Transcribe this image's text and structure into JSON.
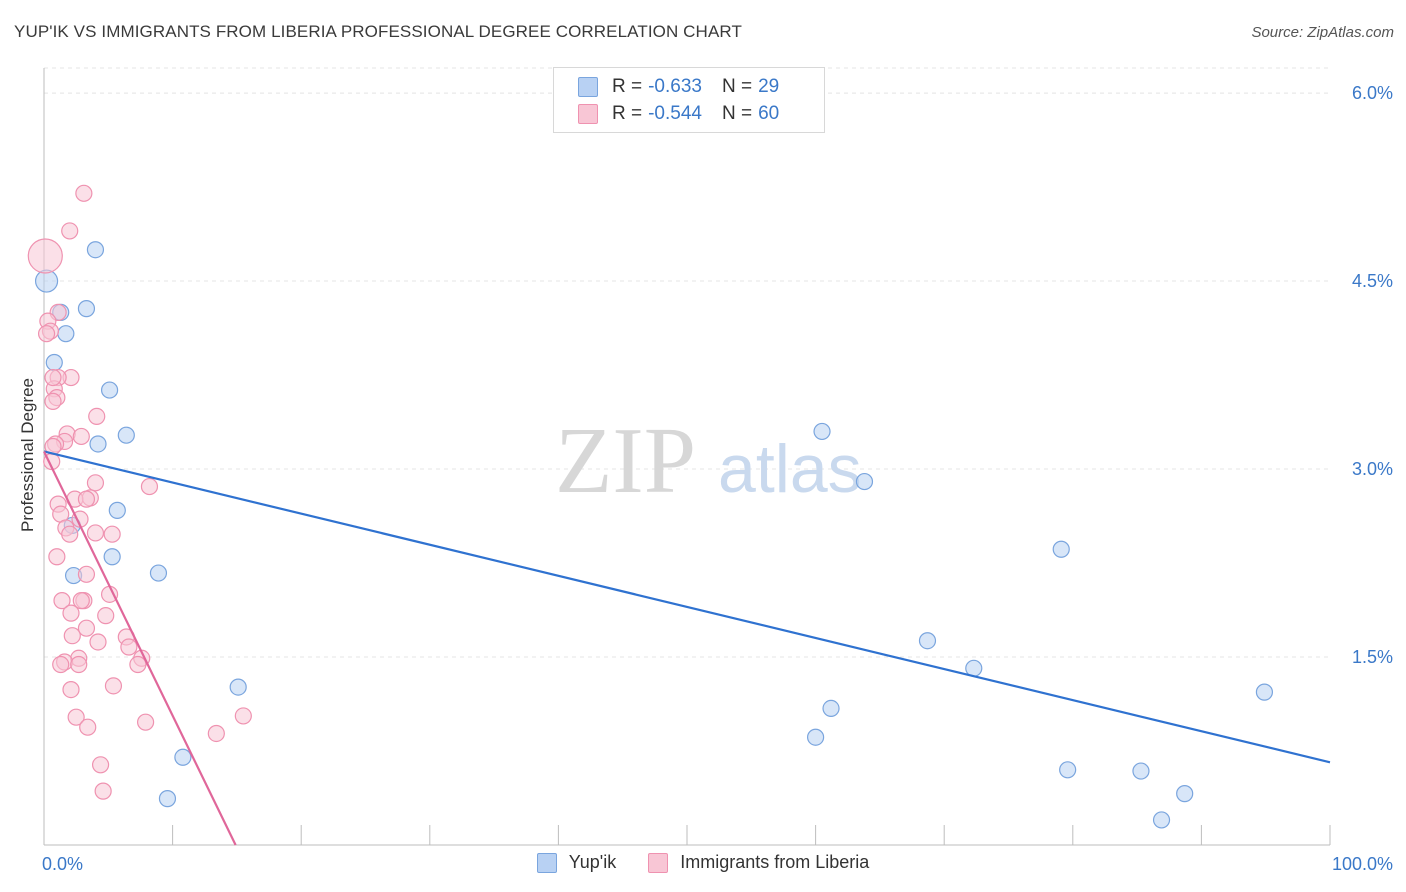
{
  "header": {
    "title": "YUP'IK VS IMMIGRANTS FROM LIBERIA PROFESSIONAL DEGREE CORRELATION CHART",
    "source": "Source: ZipAtlas.com"
  },
  "watermark": {
    "zip": "ZIP",
    "atlas": "atlas"
  },
  "legend_top": [
    {
      "r_label": "R =",
      "r_value": "-0.633",
      "n_label": "N =",
      "n_value": "29"
    },
    {
      "r_label": "R =",
      "r_value": "-0.544",
      "n_label": "N =",
      "n_value": "60"
    }
  ],
  "colors": {
    "blue_fill": "#b8d1f3",
    "blue_stroke": "#7aa5de",
    "blue_line": "#2f72d0",
    "pink_fill": "#f8c6d5",
    "pink_stroke": "#ef92b0",
    "pink_line": "#e0679a",
    "axis_text": "#3a78c8",
    "grid": "#e4e4e4"
  },
  "chart_data": {
    "type": "scatter",
    "title": "YUP'IK VS IMMIGRANTS FROM LIBERIA PROFESSIONAL DEGREE CORRELATION CHART",
    "xlabel": "",
    "ylabel": "Professional Degree",
    "xlim": [
      0,
      100
    ],
    "ylim": [
      0,
      6.2
    ],
    "x_ticks": [
      0,
      10,
      20,
      30,
      40,
      50,
      60,
      70,
      80,
      90,
      100
    ],
    "x_tick_labels": {
      "0": "0.0%",
      "100": "100.0%"
    },
    "y_ticks": [
      1.5,
      3.0,
      4.5,
      6.0
    ],
    "y_tick_labels": [
      "1.5%",
      "3.0%",
      "4.5%",
      "6.0%"
    ],
    "series": [
      {
        "name": "Yup'ik",
        "color": "#b8d1f3",
        "points": [
          [
            0.2,
            4.5
          ],
          [
            4.0,
            4.75
          ],
          [
            1.3,
            4.25
          ],
          [
            3.3,
            4.28
          ],
          [
            1.7,
            4.08
          ],
          [
            0.8,
            3.85
          ],
          [
            5.1,
            3.63
          ],
          [
            6.4,
            3.27
          ],
          [
            4.2,
            3.2
          ],
          [
            5.7,
            2.67
          ],
          [
            2.2,
            2.55
          ],
          [
            5.3,
            2.3
          ],
          [
            2.3,
            2.15
          ],
          [
            8.9,
            2.17
          ],
          [
            60.5,
            3.3
          ],
          [
            63.8,
            2.9
          ],
          [
            79.1,
            2.36
          ],
          [
            68.7,
            1.63
          ],
          [
            72.3,
            1.41
          ],
          [
            15.1,
            1.26
          ],
          [
            94.9,
            1.22
          ],
          [
            61.2,
            1.09
          ],
          [
            60.0,
            0.86
          ],
          [
            10.8,
            0.7
          ],
          [
            79.6,
            0.6
          ],
          [
            85.3,
            0.59
          ],
          [
            88.7,
            0.41
          ],
          [
            9.6,
            0.37
          ],
          [
            86.9,
            0.2
          ]
        ],
        "trend": {
          "x": [
            0,
            100
          ],
          "y": [
            3.14,
            0.66
          ]
        }
      },
      {
        "name": "Immigrants from Liberia",
        "color": "#f8c6d5",
        "points": [
          [
            0.1,
            4.7
          ],
          [
            3.1,
            5.2
          ],
          [
            2.0,
            4.9
          ],
          [
            1.1,
            4.25
          ],
          [
            0.3,
            4.18
          ],
          [
            0.5,
            4.1
          ],
          [
            0.2,
            4.08
          ],
          [
            2.1,
            3.73
          ],
          [
            1.1,
            3.73
          ],
          [
            0.8,
            3.64
          ],
          [
            1.0,
            3.57
          ],
          [
            0.7,
            3.54
          ],
          [
            4.1,
            3.42
          ],
          [
            1.8,
            3.28
          ],
          [
            2.9,
            3.26
          ],
          [
            1.6,
            3.22
          ],
          [
            0.9,
            3.2
          ],
          [
            0.7,
            3.18
          ],
          [
            0.6,
            3.06
          ],
          [
            4.0,
            2.89
          ],
          [
            8.2,
            2.86
          ],
          [
            3.6,
            2.77
          ],
          [
            2.4,
            2.76
          ],
          [
            1.1,
            2.72
          ],
          [
            3.3,
            2.76
          ],
          [
            1.3,
            2.64
          ],
          [
            2.8,
            2.6
          ],
          [
            1.7,
            2.53
          ],
          [
            4.0,
            2.49
          ],
          [
            5.3,
            2.48
          ],
          [
            2.0,
            2.48
          ],
          [
            1.0,
            2.3
          ],
          [
            3.3,
            2.16
          ],
          [
            5.1,
            2.0
          ],
          [
            1.4,
            1.95
          ],
          [
            3.1,
            1.95
          ],
          [
            2.9,
            1.95
          ],
          [
            2.1,
            1.85
          ],
          [
            4.8,
            1.83
          ],
          [
            3.3,
            1.73
          ],
          [
            6.4,
            1.66
          ],
          [
            2.2,
            1.67
          ],
          [
            4.2,
            1.62
          ],
          [
            6.6,
            1.58
          ],
          [
            7.6,
            1.49
          ],
          [
            2.7,
            1.49
          ],
          [
            1.6,
            1.46
          ],
          [
            1.3,
            1.44
          ],
          [
            2.7,
            1.44
          ],
          [
            7.3,
            1.44
          ],
          [
            5.4,
            1.27
          ],
          [
            2.1,
            1.24
          ],
          [
            15.5,
            1.03
          ],
          [
            2.5,
            1.02
          ],
          [
            7.9,
            0.98
          ],
          [
            3.4,
            0.94
          ],
          [
            13.4,
            0.89
          ],
          [
            4.4,
            0.64
          ],
          [
            4.6,
            0.43
          ],
          [
            0.7,
            3.73
          ]
        ],
        "trend": {
          "x": [
            0,
            14.9
          ],
          "y": [
            3.14,
            0.0
          ]
        }
      }
    ],
    "legend": [
      "Yup'ik",
      "Immigrants from Liberia"
    ],
    "grid": true
  }
}
